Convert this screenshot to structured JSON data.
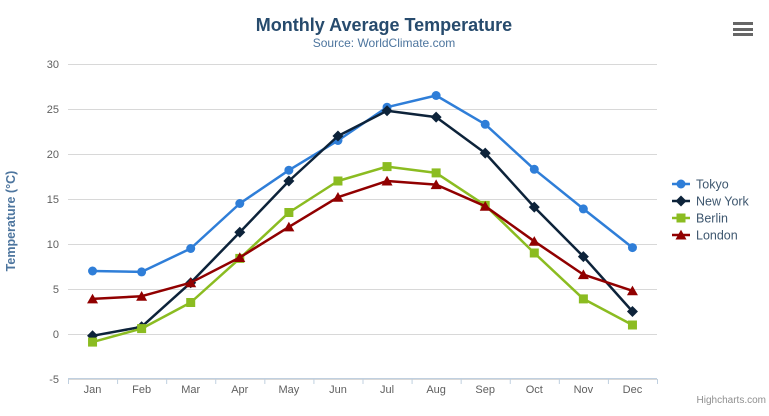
{
  "page": {
    "credits_label": "Highcharts.com"
  },
  "chart_data": {
    "type": "line",
    "title": "Monthly Average Temperature",
    "subtitle": "Source: WorldClimate.com",
    "categories": [
      "Jan",
      "Feb",
      "Mar",
      "Apr",
      "May",
      "Jun",
      "Jul",
      "Aug",
      "Sep",
      "Oct",
      "Nov",
      "Dec"
    ],
    "series": [
      {
        "name": "Tokyo",
        "color": "#2f7ed8",
        "marker": "circle",
        "values": [
          7.0,
          6.9,
          9.5,
          14.5,
          18.2,
          21.5,
          25.2,
          26.5,
          23.3,
          18.3,
          13.9,
          9.6
        ]
      },
      {
        "name": "New York",
        "color": "#0d233a",
        "marker": "diamond",
        "values": [
          -0.2,
          0.8,
          5.7,
          11.3,
          17.0,
          22.0,
          24.8,
          24.1,
          20.1,
          14.1,
          8.6,
          2.5
        ]
      },
      {
        "name": "Berlin",
        "color": "#8bbc21",
        "marker": "square",
        "values": [
          -0.9,
          0.6,
          3.5,
          8.4,
          13.5,
          17.0,
          18.6,
          17.9,
          14.3,
          9.0,
          3.9,
          1.0
        ]
      },
      {
        "name": "London",
        "color": "#910000",
        "marker": "triangle",
        "values": [
          3.9,
          4.2,
          5.7,
          8.5,
          11.9,
          15.2,
          17.0,
          16.6,
          14.2,
          10.3,
          6.6,
          4.8
        ]
      }
    ],
    "xlabel": "",
    "ylabel": "Temperature (°C)",
    "ylim": [
      -5,
      30
    ],
    "ytick_step": 5,
    "grid": true,
    "legend_position": "right-middle",
    "colors": {
      "title": "#274b6d",
      "subtitle": "#4d759e",
      "axis_labels": "#606060",
      "axis_title": "#4d759e",
      "axis_line": "#c0d0e0",
      "gridline": "#d8d8d8",
      "legend_text": "#3e576f"
    }
  }
}
